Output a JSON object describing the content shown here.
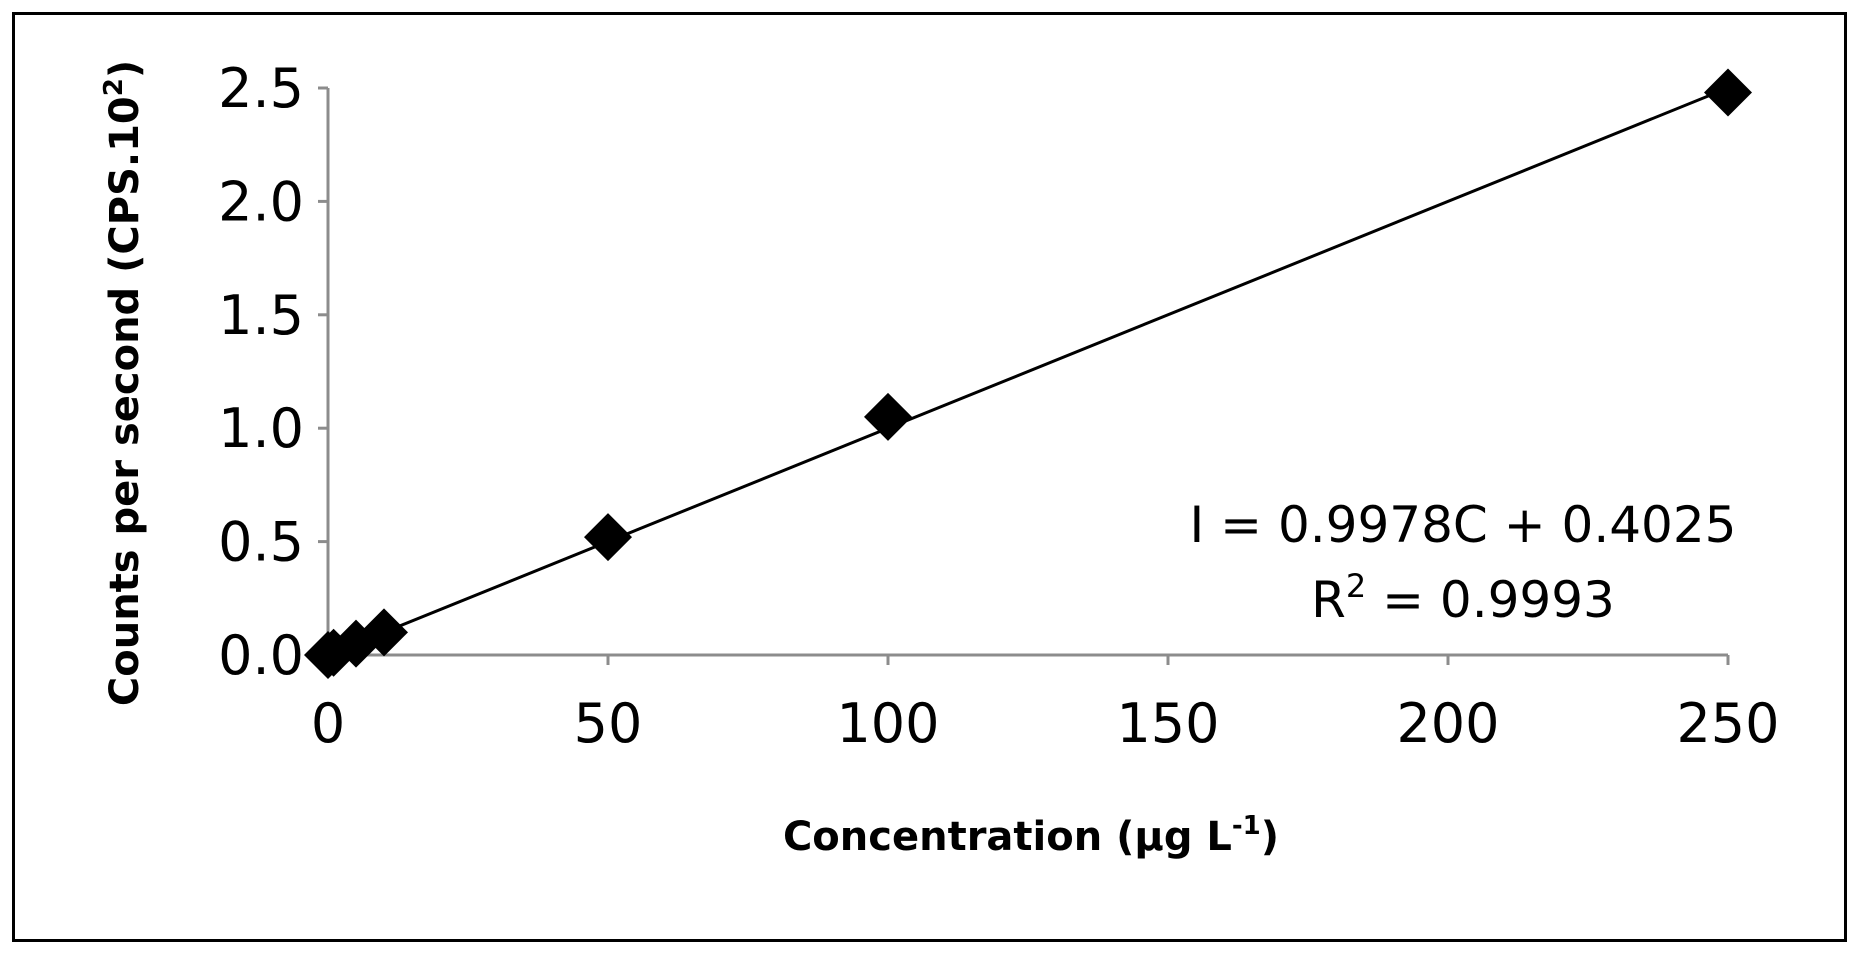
{
  "chart_data": {
    "type": "scatter",
    "x": [
      0,
      1,
      5,
      10,
      50,
      100,
      250
    ],
    "y": [
      0.0,
      0.01,
      0.05,
      0.1,
      0.52,
      1.05,
      2.48
    ],
    "xlabel": "Concentration (µg L",
    "xlabel_sup": "-1",
    "xlabel_end": ")",
    "ylabel": "Counts per second (CPS.10",
    "ylabel_sup": "2",
    "ylabel_end": ")",
    "xlim": [
      0,
      250
    ],
    "ylim": [
      0,
      2.5
    ],
    "xticks": [
      0,
      50,
      100,
      150,
      200,
      250
    ],
    "yticks": [
      0.0,
      0.5,
      1.0,
      1.5,
      2.0,
      2.5
    ],
    "xtick_labels": [
      "0",
      "50",
      "100",
      "150",
      "200",
      "250"
    ],
    "ytick_labels": [
      "0.0",
      "0.5",
      "1.0",
      "1.5",
      "2.0",
      "2.5"
    ],
    "grid": false,
    "legend": "none",
    "marker": "diamond",
    "marker_color": "#000000",
    "trendline": {
      "from": [
        0,
        0
      ],
      "to": [
        250,
        2.5
      ]
    },
    "annotation": {
      "equation": "I = 0.9978C + 0.4025",
      "r2_prefix": "R",
      "r2_sup": "2",
      "r2_value": " = 0.9993"
    }
  }
}
